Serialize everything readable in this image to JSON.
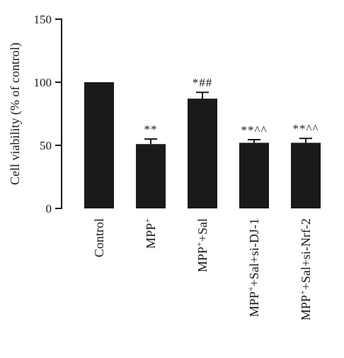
{
  "chart_data": {
    "type": "bar",
    "title": "",
    "xlabel": "",
    "ylabel": "Cell viability (% of control)",
    "ylim": [
      0,
      150
    ],
    "yticks": [
      "0",
      "50",
      "100",
      "150"
    ],
    "ytick_values": [
      0,
      50,
      100,
      150
    ],
    "grid": false,
    "bar_color": "#1a1a1a",
    "categories": [
      {
        "base": "Control",
        "sup": "",
        "rest": ""
      },
      {
        "base": "MPP",
        "sup": "+",
        "rest": ""
      },
      {
        "base": "MPP",
        "sup": "+",
        "rest": "+Sal"
      },
      {
        "base": "MPP",
        "sup": "+",
        "rest": "+Sal+si-DJ-1"
      },
      {
        "base": "MPP",
        "sup": "+",
        "rest": "+Sal+si-Nrf-2"
      }
    ],
    "values": [
      100,
      51,
      87,
      52,
      52
    ],
    "errors": [
      0,
      4,
      5,
      2.5,
      3.5
    ],
    "annotations": [
      "",
      "**",
      "*##",
      "**^^",
      "**^^"
    ]
  }
}
